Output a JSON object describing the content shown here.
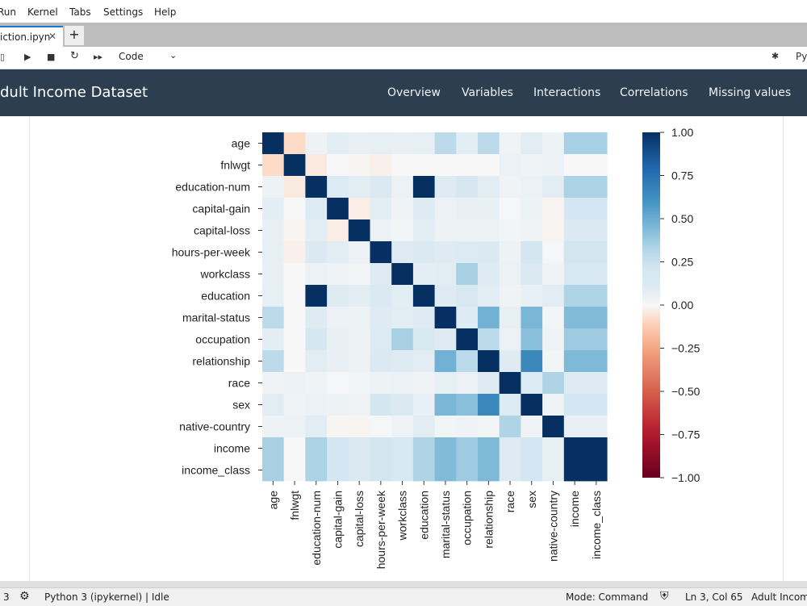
{
  "menu": {
    "items": [
      "Run",
      "Kernel",
      "Tabs",
      "Settings",
      "Help"
    ]
  },
  "tab": {
    "label": "iction.ipyn",
    "close": "✕",
    "new": "+"
  },
  "toolbar": {
    "cell_type": "Code",
    "kernel_label": "Py"
  },
  "nav": {
    "brand": "Adult Income Dataset",
    "links": [
      "Overview",
      "Variables",
      "Interactions",
      "Correlations",
      "Missing values"
    ]
  },
  "status": {
    "count": "3",
    "kernel": "Python 3 (ipykernel) | Idle",
    "mode": "Mode: Command",
    "position": "Ln 3, Col 65",
    "doc": "Adult Income"
  },
  "chart_data": {
    "type": "heatmap",
    "variables": [
      "age",
      "fnlwgt",
      "education-num",
      "capital-gain",
      "capital-loss",
      "hours-per-week",
      "workclass",
      "education",
      "marital-status",
      "occupation",
      "relationship",
      "race",
      "sex",
      "native-country",
      "income",
      "income_class"
    ],
    "matrix": [
      [
        1,
        -0.08,
        0.04,
        0.08,
        0.06,
        0.07,
        0.06,
        0.07,
        0.3,
        0.08,
        0.3,
        0.03,
        0.09,
        0.04,
        0.35,
        0.35
      ],
      [
        -0.08,
        1,
        -0.04,
        0,
        -0.01,
        -0.02,
        0,
        0,
        0,
        0,
        0,
        0.05,
        0.03,
        0.05,
        0,
        0
      ],
      [
        0.04,
        -0.04,
        1,
        0.12,
        0.08,
        0.14,
        0.05,
        1,
        0.1,
        0.19,
        0.09,
        0.03,
        0.05,
        0.09,
        0.34,
        0.34
      ],
      [
        0.08,
        0,
        0.12,
        1,
        -0.03,
        0.08,
        0.03,
        0.1,
        0.05,
        0.06,
        0.06,
        0.01,
        0.04,
        -0.01,
        0.22,
        0.22
      ],
      [
        0.06,
        -0.01,
        0.08,
        -0.03,
        1,
        0.05,
        0.02,
        0.08,
        0.04,
        0.04,
        0.04,
        0.02,
        0.03,
        -0.01,
        0.15,
        0.15
      ],
      [
        0.07,
        -0.02,
        0.14,
        0.08,
        0.05,
        1,
        0.1,
        0.14,
        0.1,
        0.12,
        0.15,
        0.04,
        0.21,
        0.01,
        0.23,
        0.23
      ],
      [
        0.06,
        0,
        0.05,
        0.03,
        0.02,
        0.1,
        1,
        0.08,
        0.09,
        0.35,
        0.1,
        0.05,
        0.14,
        0.03,
        0.17,
        0.17
      ],
      [
        0.07,
        0,
        1,
        0.1,
        0.08,
        0.14,
        0.08,
        1,
        0.1,
        0.18,
        0.09,
        0.03,
        0.06,
        0.09,
        0.33,
        0.33
      ],
      [
        0.3,
        0,
        0.1,
        0.05,
        0.04,
        0.1,
        0.09,
        0.1,
        1,
        0.1,
        0.48,
        0.07,
        0.46,
        0.02,
        0.44,
        0.44
      ],
      [
        0.08,
        0,
        0.19,
        0.06,
        0.04,
        0.12,
        0.35,
        0.18,
        0.1,
        1,
        0.3,
        0.05,
        0.42,
        0.03,
        0.37,
        0.37
      ],
      [
        0.3,
        0,
        0.09,
        0.06,
        0.04,
        0.15,
        0.1,
        0.09,
        0.48,
        0.3,
        1,
        0.1,
        0.65,
        0.02,
        0.45,
        0.45
      ],
      [
        0.03,
        0.05,
        0.03,
        0.01,
        0.02,
        0.04,
        0.05,
        0.03,
        0.07,
        0.05,
        0.1,
        1,
        0.12,
        0.33,
        0.1,
        0.1
      ],
      [
        0.09,
        0.03,
        0.05,
        0.04,
        0.03,
        0.21,
        0.14,
        0.06,
        0.46,
        0.42,
        0.65,
        0.12,
        1,
        0.03,
        0.22,
        0.22
      ],
      [
        0.04,
        0.05,
        0.09,
        -0.01,
        -0.01,
        0.01,
        0.03,
        0.09,
        0.02,
        0.03,
        0.02,
        0.33,
        0.03,
        1,
        0.06,
        0.06
      ],
      [
        0.35,
        0,
        0.34,
        0.22,
        0.15,
        0.23,
        0.17,
        0.33,
        0.44,
        0.37,
        0.45,
        0.1,
        0.22,
        0.06,
        1,
        1
      ],
      [
        0.35,
        0,
        0.34,
        0.22,
        0.15,
        0.23,
        0.17,
        0.33,
        0.44,
        0.37,
        0.45,
        0.1,
        0.22,
        0.06,
        1,
        1
      ]
    ],
    "vmin": -1,
    "vmax": 1,
    "colormap": "RdBu",
    "colorbar_ticks": [
      "1.00",
      "0.75",
      "0.50",
      "0.25",
      "0.00",
      "−0.25",
      "−0.50",
      "−0.75",
      "−1.00"
    ]
  }
}
